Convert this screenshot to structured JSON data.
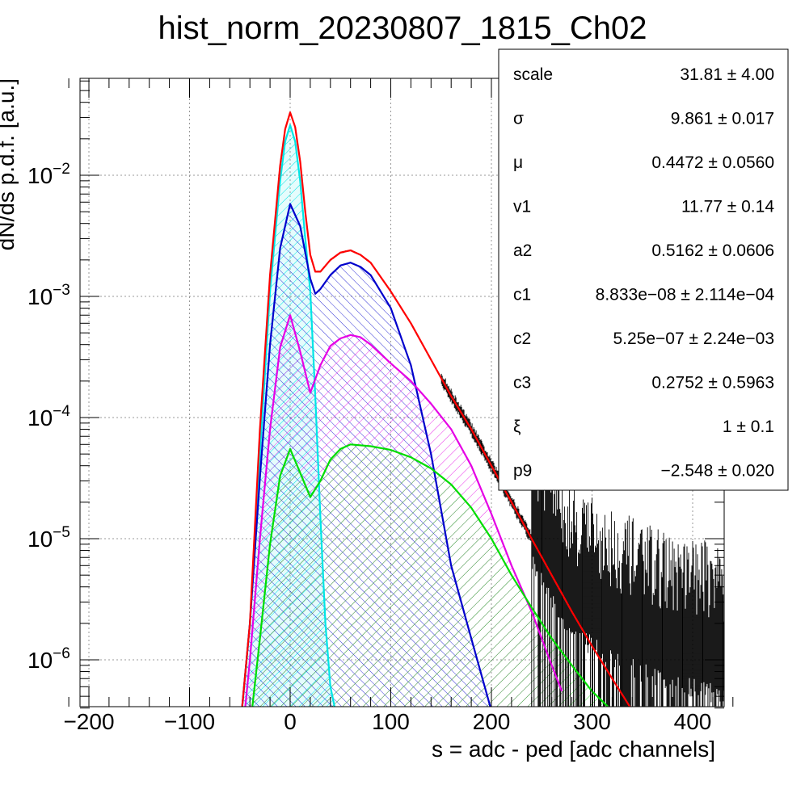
{
  "chart_data": {
    "type": "line",
    "title": "hist_norm_20230807_1815_Ch02",
    "xlabel": "s = adc - ped [adc channels]",
    "ylabel": "dN/ds p.d.f. [a.u.]",
    "xlim": [
      -220,
      440
    ],
    "ylim": [
      3.8e-07,
      0.06
    ],
    "yscale": "log",
    "grid": true,
    "x_ticks": [
      -200,
      -100,
      0,
      100,
      200,
      300,
      400
    ],
    "y_ticks": [
      {
        "value": 1e-06,
        "base": "10",
        "exp": "−6"
      },
      {
        "value": 1e-05,
        "base": "10",
        "exp": "−5"
      },
      {
        "value": 0.0001,
        "base": "10",
        "exp": "−4"
      },
      {
        "value": 0.001,
        "base": "10",
        "exp": "−3"
      },
      {
        "value": 0.01,
        "base": "10",
        "exp": "−2"
      }
    ],
    "series": [
      {
        "color": "#00e5e5",
        "fill_pattern": "hatch-cyan",
        "x": [
          -48,
          -40,
          -30,
          -20,
          -10,
          -5,
          0,
          5,
          10,
          15,
          20,
          25,
          30,
          35,
          40,
          45
        ],
        "y": [
          3.8e-07,
          2e-06,
          5e-05,
          0.0011,
          0.009,
          0.019,
          0.026,
          0.019,
          0.009,
          0.003,
          0.0011,
          0.00015,
          1.5e-05,
          2e-06,
          6e-07,
          3.8e-07
        ]
      },
      {
        "color": "#0000cc",
        "fill_pattern": "hatch-blue",
        "x": [
          -48,
          -40,
          -30,
          -20,
          -10,
          0,
          10,
          20,
          25,
          30,
          40,
          50,
          60,
          70,
          80,
          100,
          120,
          140,
          160,
          180,
          200
        ],
        "y": [
          3.8e-07,
          2e-06,
          3.2e-05,
          0.0004,
          0.0025,
          0.0058,
          0.0038,
          0.0014,
          0.00105,
          0.00115,
          0.0015,
          0.0018,
          0.0019,
          0.00175,
          0.0015,
          0.0008,
          0.00027,
          5e-05,
          6e-06,
          1.5e-06,
          3.8e-07
        ]
      },
      {
        "color": "#e500e5",
        "fill_pattern": "hatch-magenta",
        "x": [
          -45,
          -40,
          -30,
          -20,
          -10,
          0,
          10,
          20,
          30,
          40,
          50,
          60,
          70,
          80,
          100,
          120,
          140,
          160,
          180,
          200,
          220,
          240,
          260,
          270
        ],
        "y": [
          3.8e-07,
          1e-06,
          1e-05,
          8e-05,
          0.00038,
          0.0007,
          0.00035,
          0.00016,
          0.00027,
          0.00039,
          0.00045,
          0.00048,
          0.00046,
          0.0004,
          0.00028,
          0.0002,
          0.00013,
          8e-05,
          4e-05,
          1.6e-05,
          6e-06,
          2.5e-06,
          9e-07,
          5.5e-07
        ]
      },
      {
        "color": "#00dd00",
        "fill_pattern": "hatch-green",
        "x": [
          -38,
          -30,
          -20,
          -10,
          0,
          10,
          20,
          30,
          40,
          50,
          60,
          80,
          100,
          120,
          140,
          160,
          180,
          200,
          220,
          240,
          260,
          280,
          300,
          320
        ],
        "y": [
          3.8e-07,
          1.5e-06,
          9e-06,
          3.3e-05,
          5.5e-05,
          3.5e-05,
          2.2e-05,
          3e-05,
          4.5e-05,
          5.5e-05,
          6e-05,
          5.8e-05,
          5.4e-05,
          4.7e-05,
          3.8e-05,
          2.8e-05,
          1.8e-05,
          1e-05,
          5e-06,
          2.7e-06,
          1.5e-06,
          9e-07,
          5.5e-07,
          3.8e-07
        ]
      },
      {
        "color": "#ff0000",
        "x": [
          -48,
          -40,
          -30,
          -20,
          -10,
          -5,
          0,
          5,
          10,
          15,
          20,
          25,
          30,
          40,
          50,
          60,
          70,
          80,
          100,
          120,
          140,
          160,
          180,
          200,
          220,
          240,
          260,
          280,
          300,
          320,
          340
        ],
        "y": [
          3.8e-07,
          2e-06,
          8e-05,
          0.0015,
          0.012,
          0.024,
          0.033,
          0.025,
          0.013,
          0.005,
          0.0022,
          0.0016,
          0.0016,
          0.002,
          0.0023,
          0.0024,
          0.0022,
          0.0019,
          0.0011,
          0.0006,
          0.0003,
          0.00015,
          8e-05,
          4e-05,
          2e-05,
          1e-05,
          5e-06,
          2.5e-06,
          1.3e-06,
          7e-07,
          3.8e-07
        ]
      },
      {
        "color": "#000000",
        "style": "data-histogram",
        "x": [
          -48,
          -40,
          -30,
          -20,
          -10,
          -5,
          0,
          5,
          10,
          15,
          20,
          25,
          30,
          40,
          50,
          60,
          70,
          80,
          100,
          120,
          140,
          160,
          180,
          200,
          220,
          240,
          260,
          280,
          300,
          320,
          340,
          360,
          380,
          400,
          420,
          440
        ],
        "y": [
          3.8e-07,
          2e-06,
          8e-05,
          0.0015,
          0.012,
          0.024,
          0.033,
          0.025,
          0.013,
          0.005,
          0.0022,
          0.0016,
          0.0016,
          0.002,
          0.0023,
          0.0024,
          0.0022,
          0.0019,
          0.0011,
          0.0006,
          0.0003,
          0.00015,
          8e-05,
          4e-05,
          2e-05,
          1e-05,
          5e-06,
          2.5e-06,
          2e-06,
          1.5e-06,
          1.3e-06,
          1.1e-06,
          1e-06,
          9e-07,
          8e-07,
          7e-07
        ]
      }
    ],
    "stats_box": [
      {
        "name": "scale",
        "value": "31.81 ± 4.00"
      },
      {
        "name": "σ",
        "value": "9.861 ± 0.017"
      },
      {
        "name": "μ",
        "value": "0.4472 ± 0.0560"
      },
      {
        "name": "v1",
        "value": "11.77 ± 0.14"
      },
      {
        "name": "a2",
        "value": "0.5162 ± 0.0606"
      },
      {
        "name": "c1",
        "value": "8.833e−08 ± 2.114e−04"
      },
      {
        "name": "c2",
        "value": "5.25e−07 ± 2.24e−03"
      },
      {
        "name": "c3",
        "value": "0.2752 ± 0.5963"
      },
      {
        "name": "ξ",
        "value": "1 ± 0.1"
      },
      {
        "name": "p9",
        "value": "−2.548 ± 0.020"
      }
    ]
  }
}
